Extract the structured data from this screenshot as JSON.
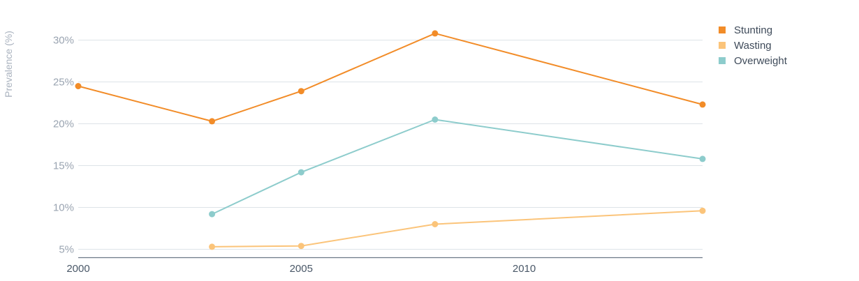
{
  "chart_data": {
    "type": "line",
    "ylabel": "Prevalence (%)",
    "xlim": [
      2000,
      2014
    ],
    "ylim": [
      4,
      32
    ],
    "yticks": [
      5,
      10,
      15,
      20,
      25,
      30
    ],
    "ytick_labels": [
      "5%",
      "10%",
      "15%",
      "20%",
      "25%",
      "30%"
    ],
    "xticks": [
      2000,
      2005,
      2010
    ],
    "xtick_labels": [
      "2000",
      "2005",
      "2010"
    ],
    "grid": "horizontal",
    "legend_position": "top-right",
    "series": [
      {
        "name": "Stunting",
        "color": "#f28c28",
        "points": [
          [
            2000,
            24.5
          ],
          [
            2003,
            20.3
          ],
          [
            2005,
            23.9
          ],
          [
            2008,
            30.8
          ],
          [
            2014,
            22.3
          ]
        ]
      },
      {
        "name": "Wasting",
        "color": "#fbc47a",
        "points": [
          [
            2003,
            5.3
          ],
          [
            2005,
            5.4
          ],
          [
            2008,
            8.0
          ],
          [
            2014,
            9.6
          ]
        ]
      },
      {
        "name": "Overweight",
        "color": "#8dcccc",
        "points": [
          [
            2003,
            9.2
          ],
          [
            2005,
            14.2
          ],
          [
            2008,
            20.5
          ],
          [
            2014,
            15.8
          ]
        ]
      }
    ]
  }
}
